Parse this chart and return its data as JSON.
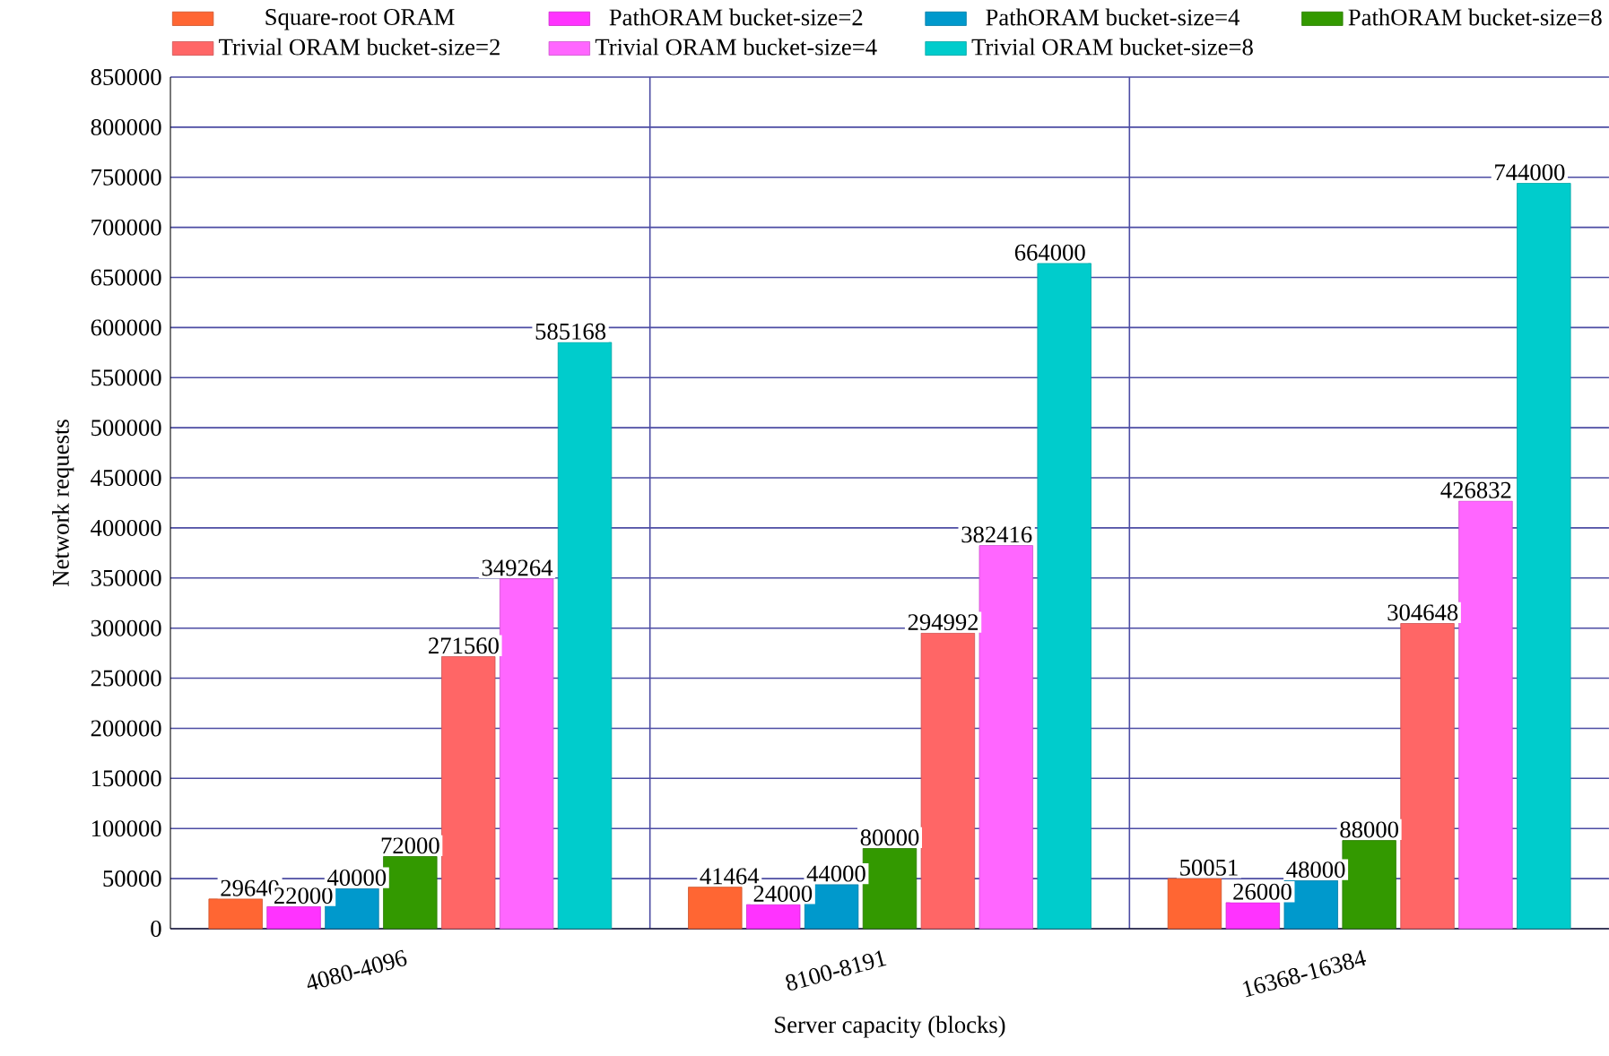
{
  "chart_data": {
    "type": "bar",
    "xlabel": "Server capacity (blocks)",
    "ylabel": "Network requests",
    "categories": [
      "4080-4096",
      "8100-8191",
      "16368-16384"
    ],
    "series": [
      {
        "name": "Square-root ORAM",
        "color": "#ff6633",
        "values": [
          29640,
          41464,
          50051
        ]
      },
      {
        "name": "PathORAM bucket-size=2",
        "color": "#ff33ff",
        "values": [
          22000,
          24000,
          26000
        ]
      },
      {
        "name": "PathORAM bucket-size=4",
        "color": "#0099cc",
        "values": [
          40000,
          44000,
          48000
        ]
      },
      {
        "name": "PathORAM bucket-size=8",
        "color": "#339900",
        "values": [
          72000,
          80000,
          88000
        ]
      },
      {
        "name": "Trivial ORAM bucket-size=2",
        "color": "#ff6666",
        "values": [
          271560,
          294992,
          304648
        ]
      },
      {
        "name": "Trivial ORAM bucket-size=4",
        "color": "#ff66ff",
        "values": [
          349264,
          382416,
          426832
        ]
      },
      {
        "name": "Trivial ORAM bucket-size=8",
        "color": "#00cccc",
        "values": [
          585168,
          664000,
          744000
        ]
      }
    ],
    "ylim": [
      0,
      850000
    ],
    "yticks": [
      0,
      50000,
      100000,
      150000,
      200000,
      250000,
      300000,
      350000,
      400000,
      450000,
      500000,
      550000,
      600000,
      650000,
      700000,
      750000,
      800000,
      850000
    ],
    "grid": true,
    "legend": "top",
    "data_labels": true
  }
}
